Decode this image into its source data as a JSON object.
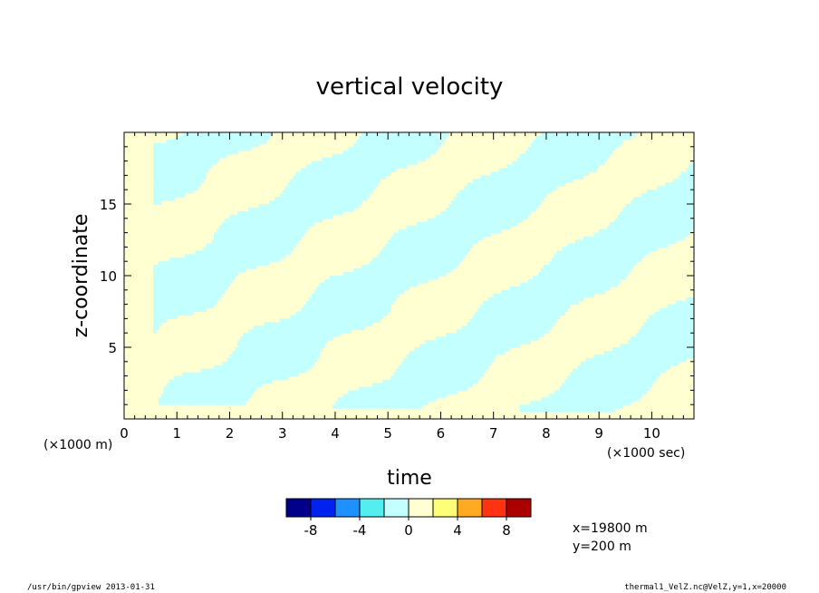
{
  "chart_data": {
    "type": "heatmap",
    "title": "vertical velocity",
    "xlabel": "time",
    "ylabel": "z-coordinate",
    "x_unit": "(×1000 sec)",
    "y_unit": "(×1000 m)",
    "xlim": [
      0,
      10.8
    ],
    "ylim": [
      0,
      20
    ],
    "x_ticks": [
      0,
      1,
      2,
      3,
      4,
      5,
      6,
      7,
      8,
      9,
      10
    ],
    "y_ticks": [
      5,
      10,
      15
    ],
    "field_levels_visible": [
      -2,
      0,
      2
    ],
    "colorbar": {
      "ticks": [
        "-8",
        "-4",
        "0",
        "4",
        "8"
      ],
      "bins": [
        {
          "range": "< -8",
          "color": "#00008b"
        },
        {
          "range": "-8..-6",
          "color": "#0022ee"
        },
        {
          "range": "-6..-4",
          "color": "#1e90ff"
        },
        {
          "range": "-4..-2",
          "color": "#55eeee"
        },
        {
          "range": "-2..0",
          "color": "#c4ffff"
        },
        {
          "range": "0..2",
          "color": "#ffffd2"
        },
        {
          "range": "2..4",
          "color": "#ffff77"
        },
        {
          "range": "4..6",
          "color": "#ffaa22"
        },
        {
          "range": "6..8",
          "color": "#ff3311"
        },
        {
          "range": "> 8",
          "color": "#aa0000"
        }
      ]
    }
  },
  "info": {
    "x_position": "x=19800 m",
    "y_position": "y=200 m"
  },
  "footer": {
    "left": "/usr/bin/gpview  2013-01-31",
    "right": "thermal1_VelZ.nc@VelZ,y=1,x=20000"
  }
}
